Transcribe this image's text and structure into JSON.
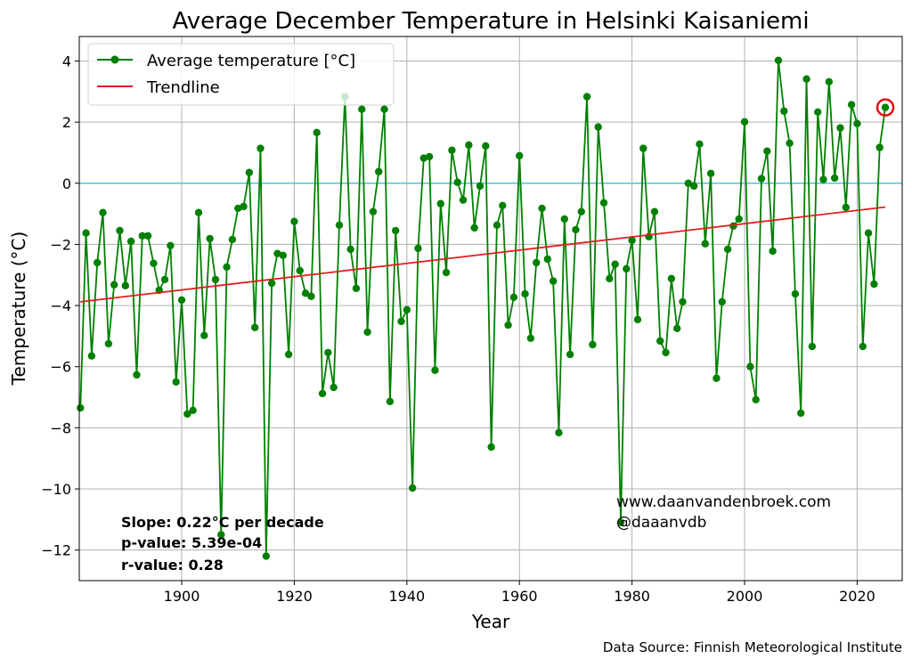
{
  "chart_data": {
    "type": "line",
    "title": "Average December Temperature in Helsinki Kaisaniemi",
    "xlabel": "Year",
    "ylabel": "Temperature (°C)",
    "xlim": [
      1881.8,
      2028
    ],
    "ylim": [
      -13.0,
      4.8
    ],
    "xticks": [
      1900,
      1920,
      1940,
      1960,
      1980,
      2000,
      2020
    ],
    "yticks": [
      4,
      2,
      0,
      -2,
      -4,
      -6,
      -8,
      -10,
      -12
    ],
    "grid": true,
    "legend_position": "top-left",
    "x_start": 1882,
    "series": [
      {
        "name": "Average temperature [°C]",
        "color": "#008000",
        "marker": "circle",
        "values": [
          -7.35,
          -1.63,
          -5.65,
          -2.6,
          -0.96,
          -5.25,
          -3.32,
          -1.55,
          -3.35,
          -1.9,
          -6.27,
          -1.72,
          -1.72,
          -2.62,
          -3.5,
          -3.15,
          -2.04,
          -6.5,
          -3.82,
          -7.55,
          -7.43,
          -0.96,
          -4.98,
          -1.81,
          -3.15,
          -11.5,
          -2.74,
          -1.84,
          -0.82,
          -0.76,
          0.35,
          -4.72,
          1.14,
          -12.2,
          -3.27,
          -2.3,
          -2.36,
          -5.6,
          -1.25,
          -2.86,
          -3.6,
          -3.7,
          1.66,
          -6.88,
          -5.54,
          -6.68,
          -1.37,
          2.83,
          -2.16,
          -3.44,
          2.42,
          -4.87,
          -0.93,
          0.38,
          2.42,
          -7.14,
          -1.55,
          -4.52,
          -4.14,
          -9.97,
          -2.13,
          0.82,
          0.87,
          -6.12,
          -0.67,
          -2.92,
          1.08,
          0.03,
          -0.55,
          1.25,
          -1.46,
          -0.09,
          1.22,
          -8.63,
          -1.37,
          -0.73,
          -4.64,
          -3.73,
          0.9,
          -3.62,
          -5.07,
          -2.6,
          -0.82,
          -2.48,
          -3.2,
          -8.16,
          -1.17,
          -5.6,
          -1.52,
          -0.93,
          2.83,
          -5.28,
          1.84,
          -0.64,
          -3.12,
          -2.65,
          -11.1,
          -2.8,
          -1.87,
          -4.46,
          1.14,
          -1.75,
          -0.93,
          -5.16,
          -5.54,
          -3.12,
          -4.75,
          -3.88,
          0.0,
          -0.09,
          1.28,
          -1.98,
          0.32,
          -6.38,
          -3.88,
          -2.16,
          -1.4,
          -1.17,
          2.01,
          -6.0,
          -7.08,
          0.15,
          1.05,
          -2.22,
          4.02,
          2.36,
          1.31,
          -3.62,
          -7.52,
          3.41,
          -5.34,
          2.33,
          0.12,
          3.32,
          0.17,
          1.81,
          -0.79,
          2.57,
          1.95,
          -5.34,
          -1.63,
          -3.3,
          1.17,
          2.48
        ]
      },
      {
        "name": "Trendline",
        "color": "#e0201c",
        "start": [
          1882,
          -3.88
        ],
        "end": [
          2025,
          -0.78
        ]
      }
    ],
    "reference_line": {
      "y": 0,
      "color": "#4fc3e0"
    },
    "highlight": {
      "x": 2025,
      "y": 2.48,
      "color": "#e01010"
    }
  },
  "annotations": {
    "slope": "Slope: 0.22°C per decade",
    "p_value": "p-value: 5.39e-04",
    "r_value": "r-value: 0.28",
    "website": "www.daanvandenbroek.com",
    "handle": "@daaanvdb",
    "source": "Data Source: Finnish Meteorological Institute"
  }
}
